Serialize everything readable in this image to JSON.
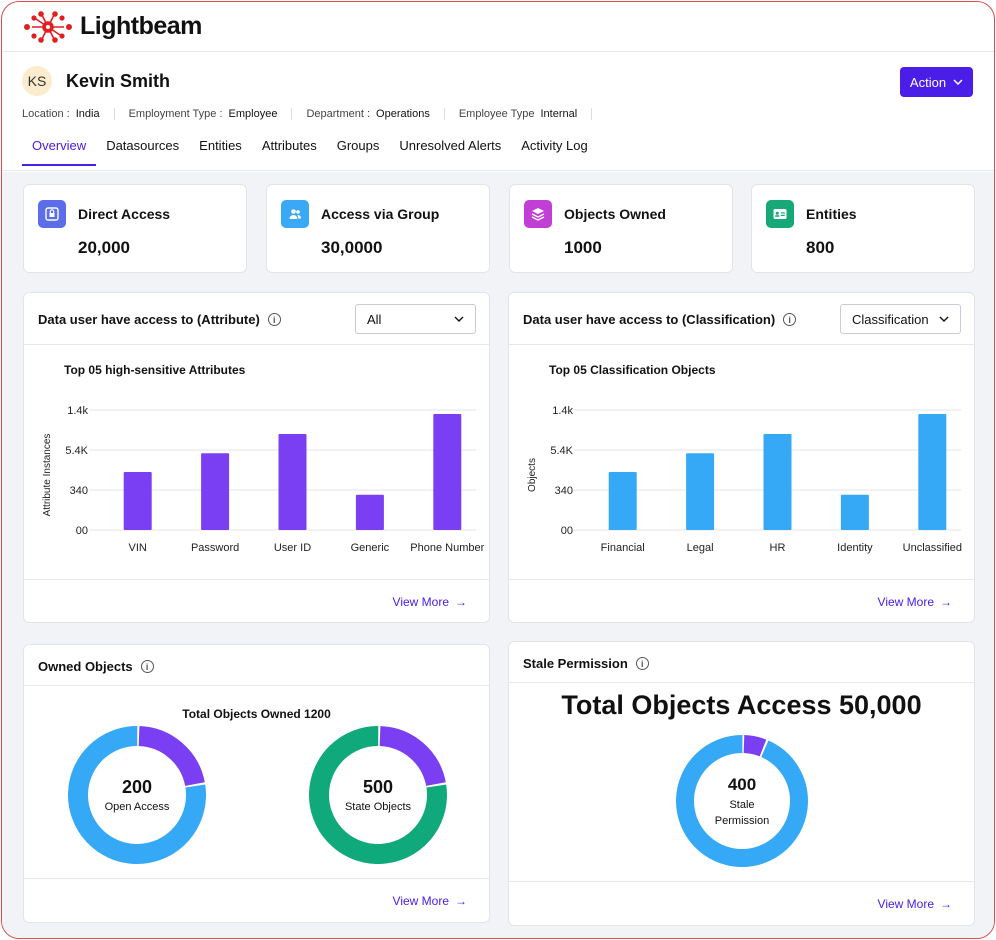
{
  "brand": {
    "name": "Lightbeam",
    "accent": "#4a1ee8",
    "logo_color": "#e02020"
  },
  "user": {
    "initials": "KS",
    "name": "Kevin Smith"
  },
  "action_button": {
    "label": "Action"
  },
  "meta": [
    {
      "key": "Location :",
      "value": "India"
    },
    {
      "key": "Employment Type :",
      "value": "Employee"
    },
    {
      "key": "Department :",
      "value": "Operations"
    },
    {
      "key": "Employee Type",
      "value": "Internal"
    }
  ],
  "tabs": [
    "Overview",
    "Datasources",
    "Entities",
    "Attributes",
    "Groups",
    "Unresolved Alerts",
    "Activity Log"
  ],
  "stats": [
    {
      "title": "Direct Access",
      "value": "20,000",
      "icon": "lock-icon",
      "color": "#5b6de8"
    },
    {
      "title": "Access via Group",
      "value": "30,0000",
      "icon": "users-icon",
      "color": "#3aa8f5"
    },
    {
      "title": "Objects Owned",
      "value": "1000",
      "icon": "layers-icon",
      "color": "#c23fd6"
    },
    {
      "title": "Entities",
      "value": "800",
      "icon": "id-card-icon",
      "color": "#17a877"
    }
  ],
  "attribute_panel": {
    "title": "Data user have access to (Attribute)",
    "select": "All",
    "chart_title": "Top 05 high-sensitive Attributes",
    "view_more": "View More"
  },
  "classification_panel": {
    "title": "Data user have access to (Classification)",
    "select": "Classification",
    "chart_title": "Top 05 Classification Objects",
    "view_more": "View More"
  },
  "owned_panel": {
    "title": "Owned Objects",
    "chart_title": "Total Objects Owned 1200",
    "donut1": {
      "value": "200",
      "label": "Open Access"
    },
    "donut2": {
      "value": "500",
      "label": "State Objects"
    },
    "view_more": "View More"
  },
  "stale_panel": {
    "title": "Stale Permission",
    "big_title": "Total Objects Access 50,000",
    "donut": {
      "value": "400",
      "label1": "Stale",
      "label2": "Permission"
    },
    "view_more": "View More"
  },
  "chart_data": [
    {
      "type": "bar",
      "title": "Top 05 high-sensitive Attributes",
      "ylabel": "Attribute Instances",
      "yticks": [
        "00",
        "340",
        "5.4K",
        "1.4k"
      ],
      "categories": [
        "VIN",
        "Password",
        "User ID",
        "Generic",
        "Phone Number"
      ],
      "values": [
        1.45,
        1.92,
        2.4,
        0.88,
        2.9
      ],
      "ylim": [
        0,
        3
      ],
      "color": "#7a3ff2",
      "grid": true
    },
    {
      "type": "bar",
      "title": "Top 05 Classification Objects",
      "ylabel": "Objects",
      "yticks": [
        "00",
        "340",
        "5.4K",
        "1.4k"
      ],
      "categories": [
        "Financial",
        "Legal",
        "HR",
        "Identity",
        "Unclassified"
      ],
      "values": [
        1.45,
        1.92,
        2.4,
        0.88,
        2.9
      ],
      "ylim": [
        0,
        3
      ],
      "color": "#35a9f6",
      "grid": true
    },
    {
      "type": "pie",
      "title": "Open Access",
      "slices": [
        {
          "value": 0.22,
          "color": "#7a3ff2"
        },
        {
          "value": 0.78,
          "color": "#35a9f6"
        }
      ]
    },
    {
      "type": "pie",
      "title": "State Objects",
      "slices": [
        {
          "value": 0.22,
          "color": "#7a3ff2"
        },
        {
          "value": 0.78,
          "color": "#10a97b"
        }
      ]
    },
    {
      "type": "pie",
      "title": "Stale Permission",
      "slices": [
        {
          "value": 0.06,
          "color": "#7a3ff2"
        },
        {
          "value": 0.94,
          "color": "#35a9f6"
        }
      ]
    }
  ]
}
